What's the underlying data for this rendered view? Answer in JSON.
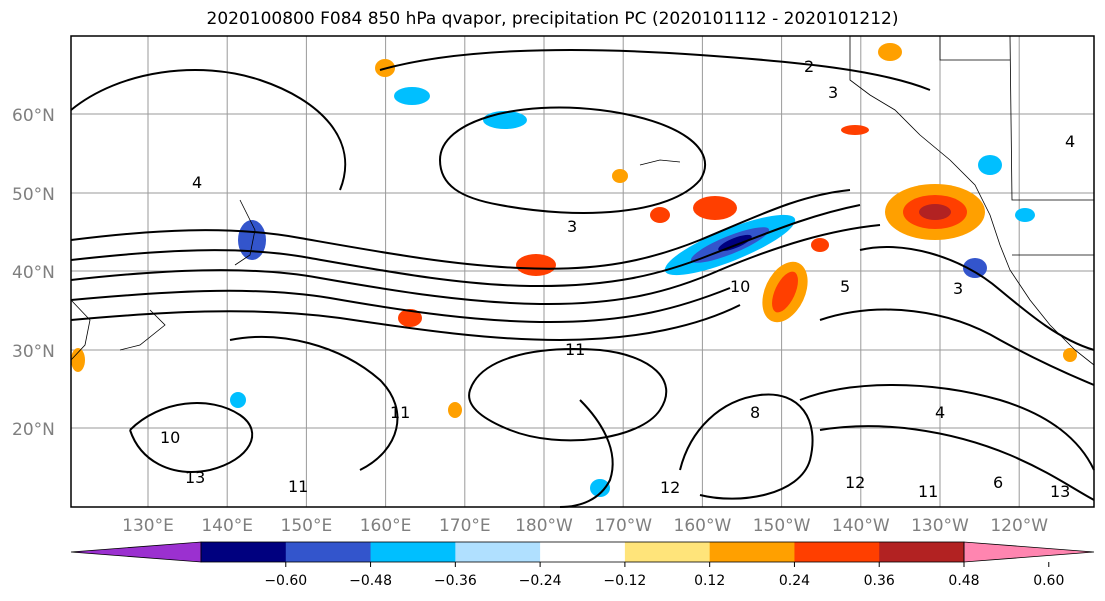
{
  "title": "2020100800 F084 850 hPa qvapor, precipitation PC (2020101112 - 2020101212)",
  "map": {
    "lat_labels": [
      "60°N",
      "50°N",
      "40°N",
      "30°N",
      "20°N"
    ],
    "lon_labels": [
      "130°E",
      "140°E",
      "150°E",
      "160°E",
      "170°E",
      "180°W",
      "170°W",
      "160°W",
      "150°W",
      "140°W",
      "130°W",
      "120°W"
    ],
    "contour_labels": [
      "2",
      "3",
      "4",
      "3",
      "4",
      "3",
      "5",
      "10",
      "11",
      "10",
      "13",
      "11",
      "11",
      "12",
      "8",
      "4",
      "12",
      "11",
      "13",
      "6"
    ]
  },
  "colorbar": {
    "colors": [
      "#9b30d0",
      "#00007f",
      "#3355cc",
      "#00bfff",
      "#b0e0ff",
      "#ffffff",
      "#ffe47a",
      "#ffa000",
      "#ff3f00",
      "#b22222",
      "#ff85b0"
    ],
    "tick_labels": [
      "-0.60",
      "-0.48",
      "-0.36",
      "-0.24",
      "-0.12",
      "0.12",
      "0.24",
      "0.36",
      "0.48",
      "0.60"
    ]
  }
}
